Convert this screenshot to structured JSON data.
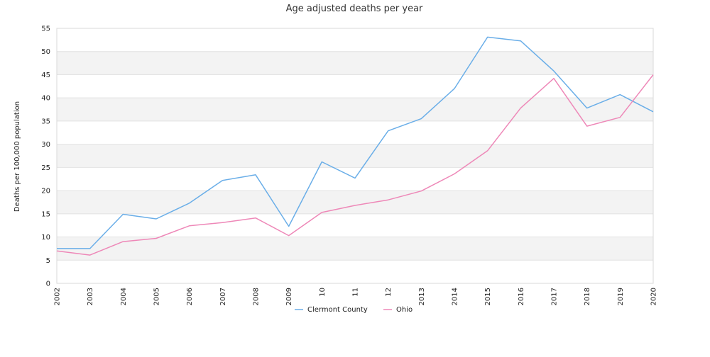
{
  "chart_data": {
    "type": "line",
    "title": "Age adjusted deaths per year",
    "xlabel": "",
    "ylabel": "Deaths per 100,000 population",
    "ylim": [
      0,
      55
    ],
    "yticks": [
      0,
      5,
      10,
      15,
      20,
      25,
      30,
      35,
      40,
      45,
      50,
      55
    ],
    "grid": true,
    "legend_position": "bottom",
    "categories": [
      "2002",
      "2003",
      "2004",
      "2005",
      "2006",
      "2007",
      "2008",
      "2009",
      "10",
      "11",
      "12",
      "2013",
      "2014",
      "2015",
      "2016",
      "2017",
      "2018",
      "2019",
      "2020"
    ],
    "series": [
      {
        "name": "Clermont County",
        "color": "#6aaee8",
        "values": [
          7.5,
          7.5,
          14.9,
          13.9,
          17.3,
          22.2,
          23.4,
          12.3,
          26.2,
          22.7,
          32.9,
          35.5,
          42.0,
          53.1,
          52.3,
          45.8,
          37.8,
          40.7,
          37.0
        ]
      },
      {
        "name": "Ohio",
        "color": "#ee88b8",
        "values": [
          7.0,
          6.1,
          9.0,
          9.7,
          12.4,
          13.1,
          14.1,
          10.3,
          15.3,
          16.8,
          18.0,
          19.9,
          23.6,
          28.6,
          37.8,
          44.2,
          33.9,
          35.8,
          45.0
        ]
      }
    ]
  }
}
